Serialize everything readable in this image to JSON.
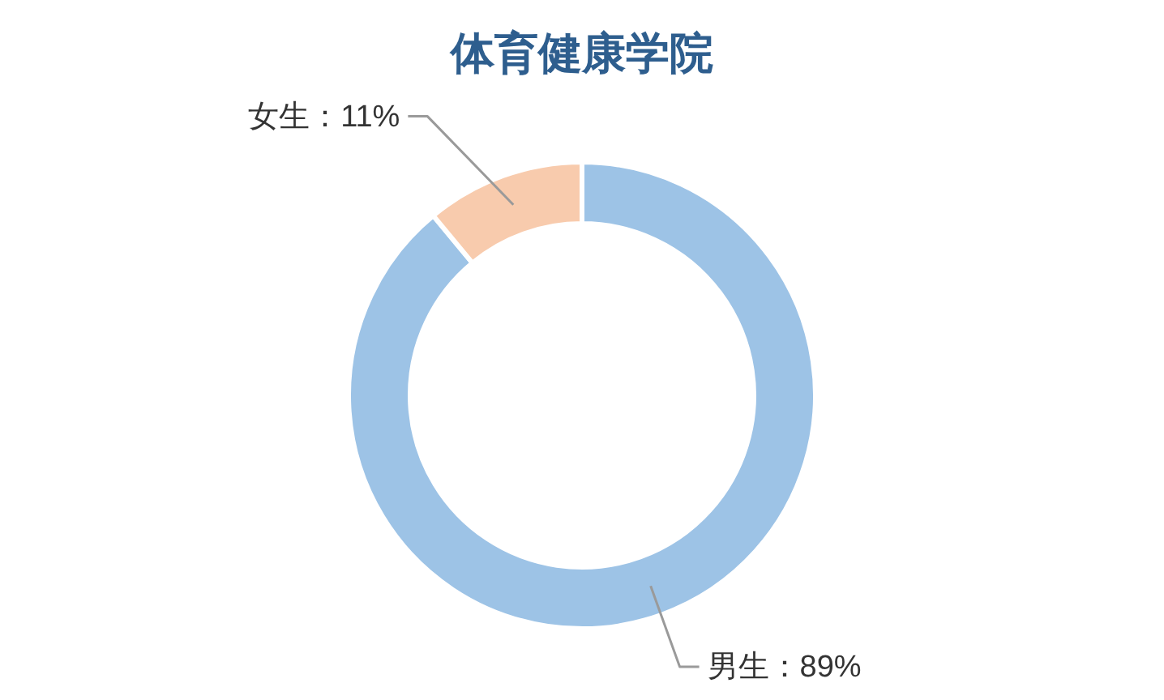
{
  "chart_data": {
    "type": "donut",
    "title": "体育健康学院",
    "categories": [
      "男生",
      "女生"
    ],
    "values": [
      89,
      11
    ],
    "colors": [
      "#9dc3e6",
      "#f8cbad"
    ],
    "value_labels": [
      "：89%",
      "：11%"
    ]
  }
}
